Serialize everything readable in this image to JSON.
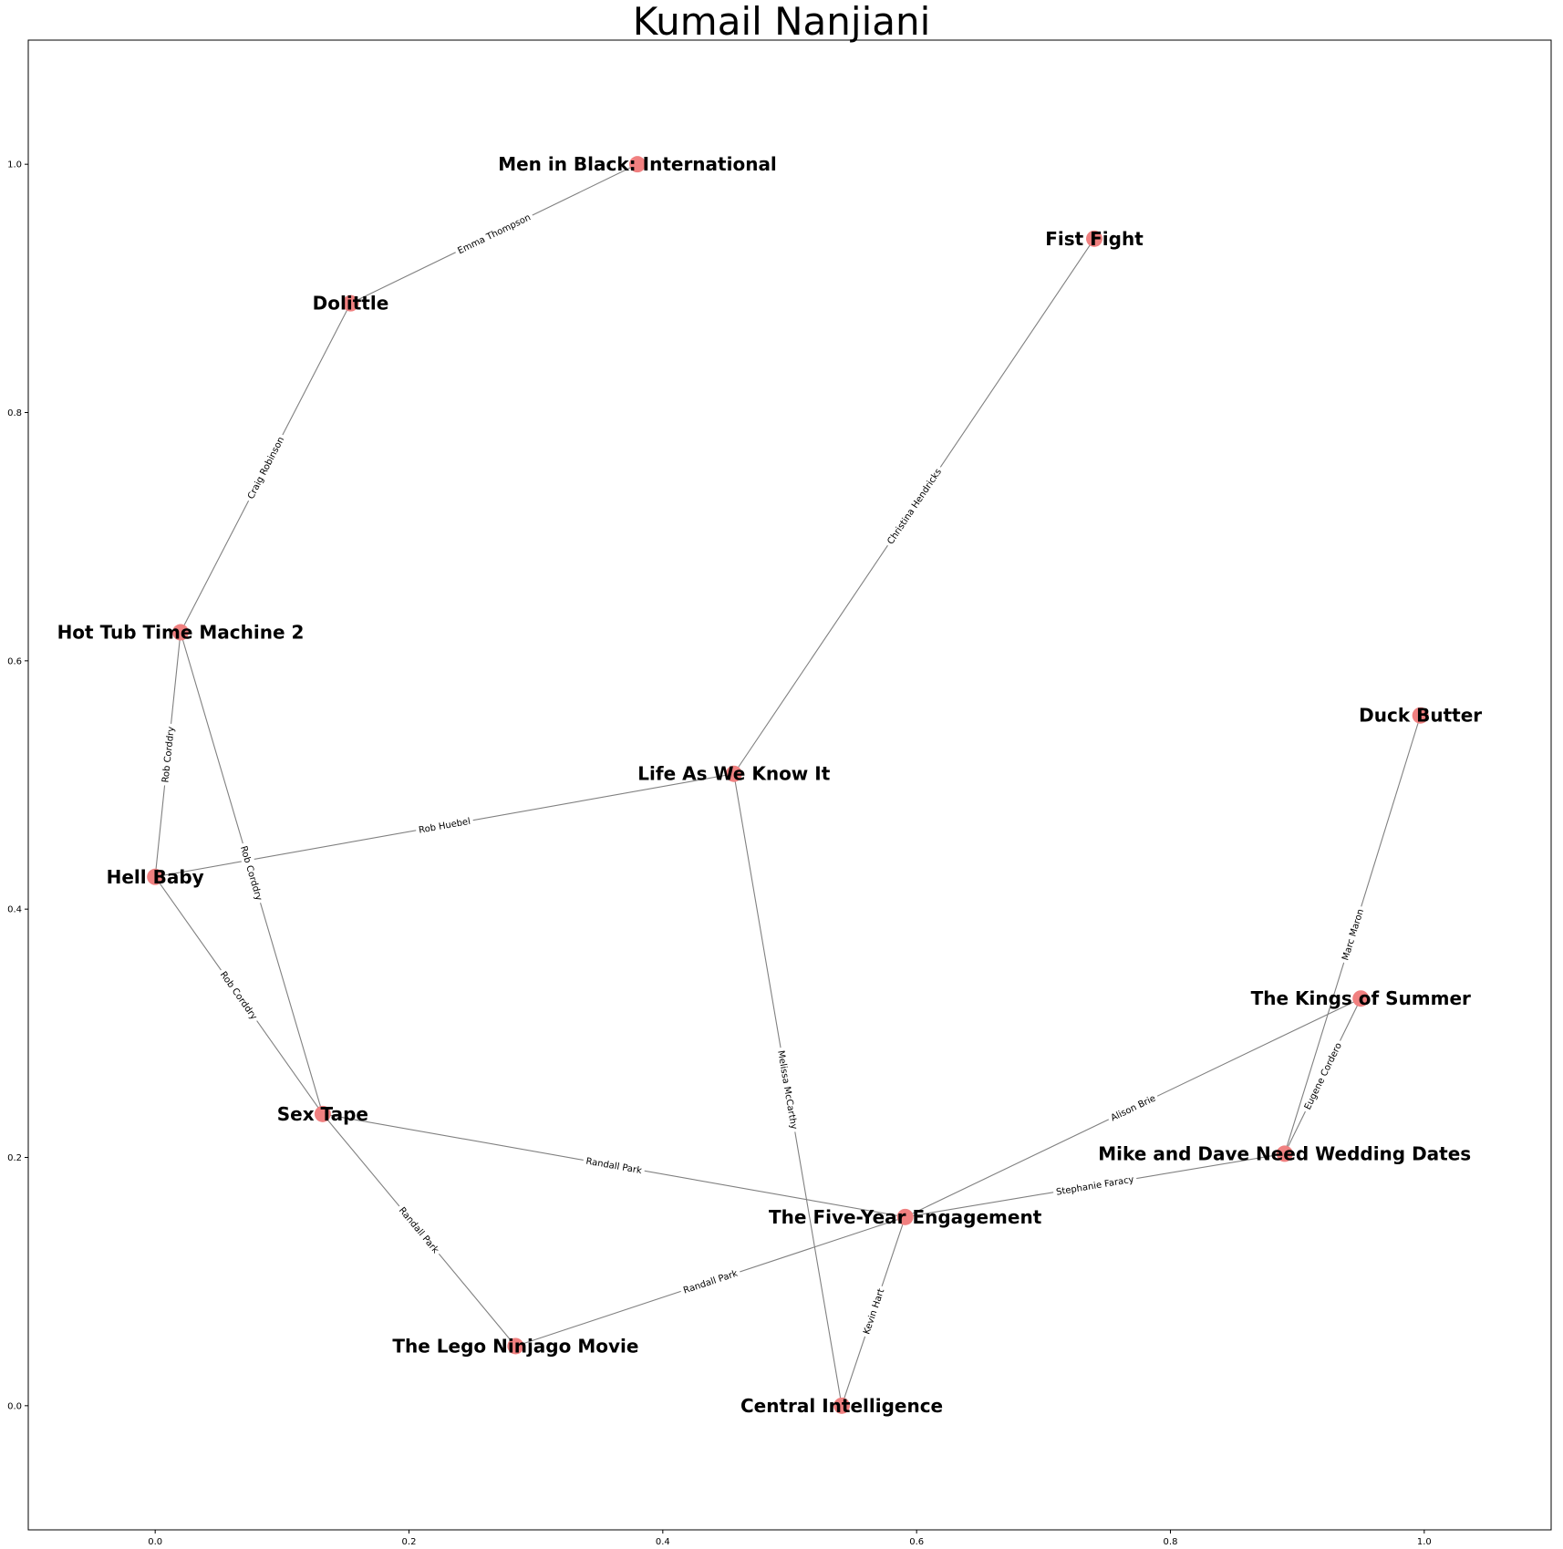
{
  "chart_data": {
    "type": "network",
    "title": "Kumail Nanjiani",
    "xlim": [
      -0.1,
      1.1
    ],
    "ylim": [
      -0.1,
      1.1
    ],
    "xticks": [
      0.0,
      0.2,
      0.4,
      0.6,
      0.8,
      1.0
    ],
    "yticks": [
      0.0,
      0.2,
      0.4,
      0.6,
      0.8,
      1.0
    ],
    "tick_labels_x": [
      "0.0",
      "0.2",
      "0.4",
      "0.6",
      "0.8",
      "1.0"
    ],
    "tick_labels_y": [
      "0.0",
      "0.2",
      "0.4",
      "0.6",
      "0.8",
      "1.0"
    ],
    "node_color": "#f08080",
    "edge_color": "#808080",
    "nodes": [
      {
        "id": "mib",
        "label": "Men in Black: International",
        "x": 0.38,
        "y": 1.0
      },
      {
        "id": "dolittle",
        "label": "Dolittle",
        "x": 0.154,
        "y": 0.888
      },
      {
        "id": "fistfight",
        "label": "Fist Fight",
        "x": 0.74,
        "y": 0.94
      },
      {
        "id": "hottub",
        "label": "Hot Tub Time Machine 2",
        "x": 0.02,
        "y": 0.623
      },
      {
        "id": "duckbutter",
        "label": "Duck Butter",
        "x": 0.997,
        "y": 0.556
      },
      {
        "id": "lifeas",
        "label": "Life As We Know It",
        "x": 0.456,
        "y": 0.509
      },
      {
        "id": "hellbaby",
        "label": "Hell Baby",
        "x": 0.0,
        "y": 0.426
      },
      {
        "id": "kings",
        "label": "The Kings of Summer",
        "x": 0.95,
        "y": 0.328
      },
      {
        "id": "sextape",
        "label": "Sex Tape",
        "x": 0.132,
        "y": 0.235
      },
      {
        "id": "mikedave",
        "label": "Mike and Dave Need Wedding Dates",
        "x": 0.89,
        "y": 0.203
      },
      {
        "id": "fiveyear",
        "label": "The Five-Year Engagement",
        "x": 0.591,
        "y": 0.152
      },
      {
        "id": "lego",
        "label": "The Lego Ninjago Movie",
        "x": 0.284,
        "y": 0.048
      },
      {
        "id": "central",
        "label": "Central Intelligence",
        "x": 0.541,
        "y": 0.0
      }
    ],
    "edges": [
      {
        "source": "mib",
        "target": "dolittle",
        "label": "Emma Thompson"
      },
      {
        "source": "dolittle",
        "target": "hottub",
        "label": "Craig Robinson"
      },
      {
        "source": "fistfight",
        "target": "lifeas",
        "label": "Christina Hendricks"
      },
      {
        "source": "hottub",
        "target": "hellbaby",
        "label": "Rob Corddry"
      },
      {
        "source": "hottub",
        "target": "sextape",
        "label": "Rob Corddry"
      },
      {
        "source": "hellbaby",
        "target": "lifeas",
        "label": "Rob Huebel"
      },
      {
        "source": "hellbaby",
        "target": "sextape",
        "label": "Rob Corddry"
      },
      {
        "source": "lifeas",
        "target": "central",
        "label": "Melissa McCarthy"
      },
      {
        "source": "sextape",
        "target": "fiveyear",
        "label": "Randall Park"
      },
      {
        "source": "sextape",
        "target": "lego",
        "label": "Randall Park"
      },
      {
        "source": "lego",
        "target": "fiveyear",
        "label": "Randall Park"
      },
      {
        "source": "fiveyear",
        "target": "kings",
        "label": "Alison Brie"
      },
      {
        "source": "fiveyear",
        "target": "mikedave",
        "label": "Stephanie Faracy"
      },
      {
        "source": "fiveyear",
        "target": "central",
        "label": "Kevin Hart"
      },
      {
        "source": "kings",
        "target": "mikedave",
        "label": "Eugene Cordero"
      },
      {
        "source": "duckbutter",
        "target": "mikedave",
        "label": "Marc Maron"
      }
    ]
  }
}
